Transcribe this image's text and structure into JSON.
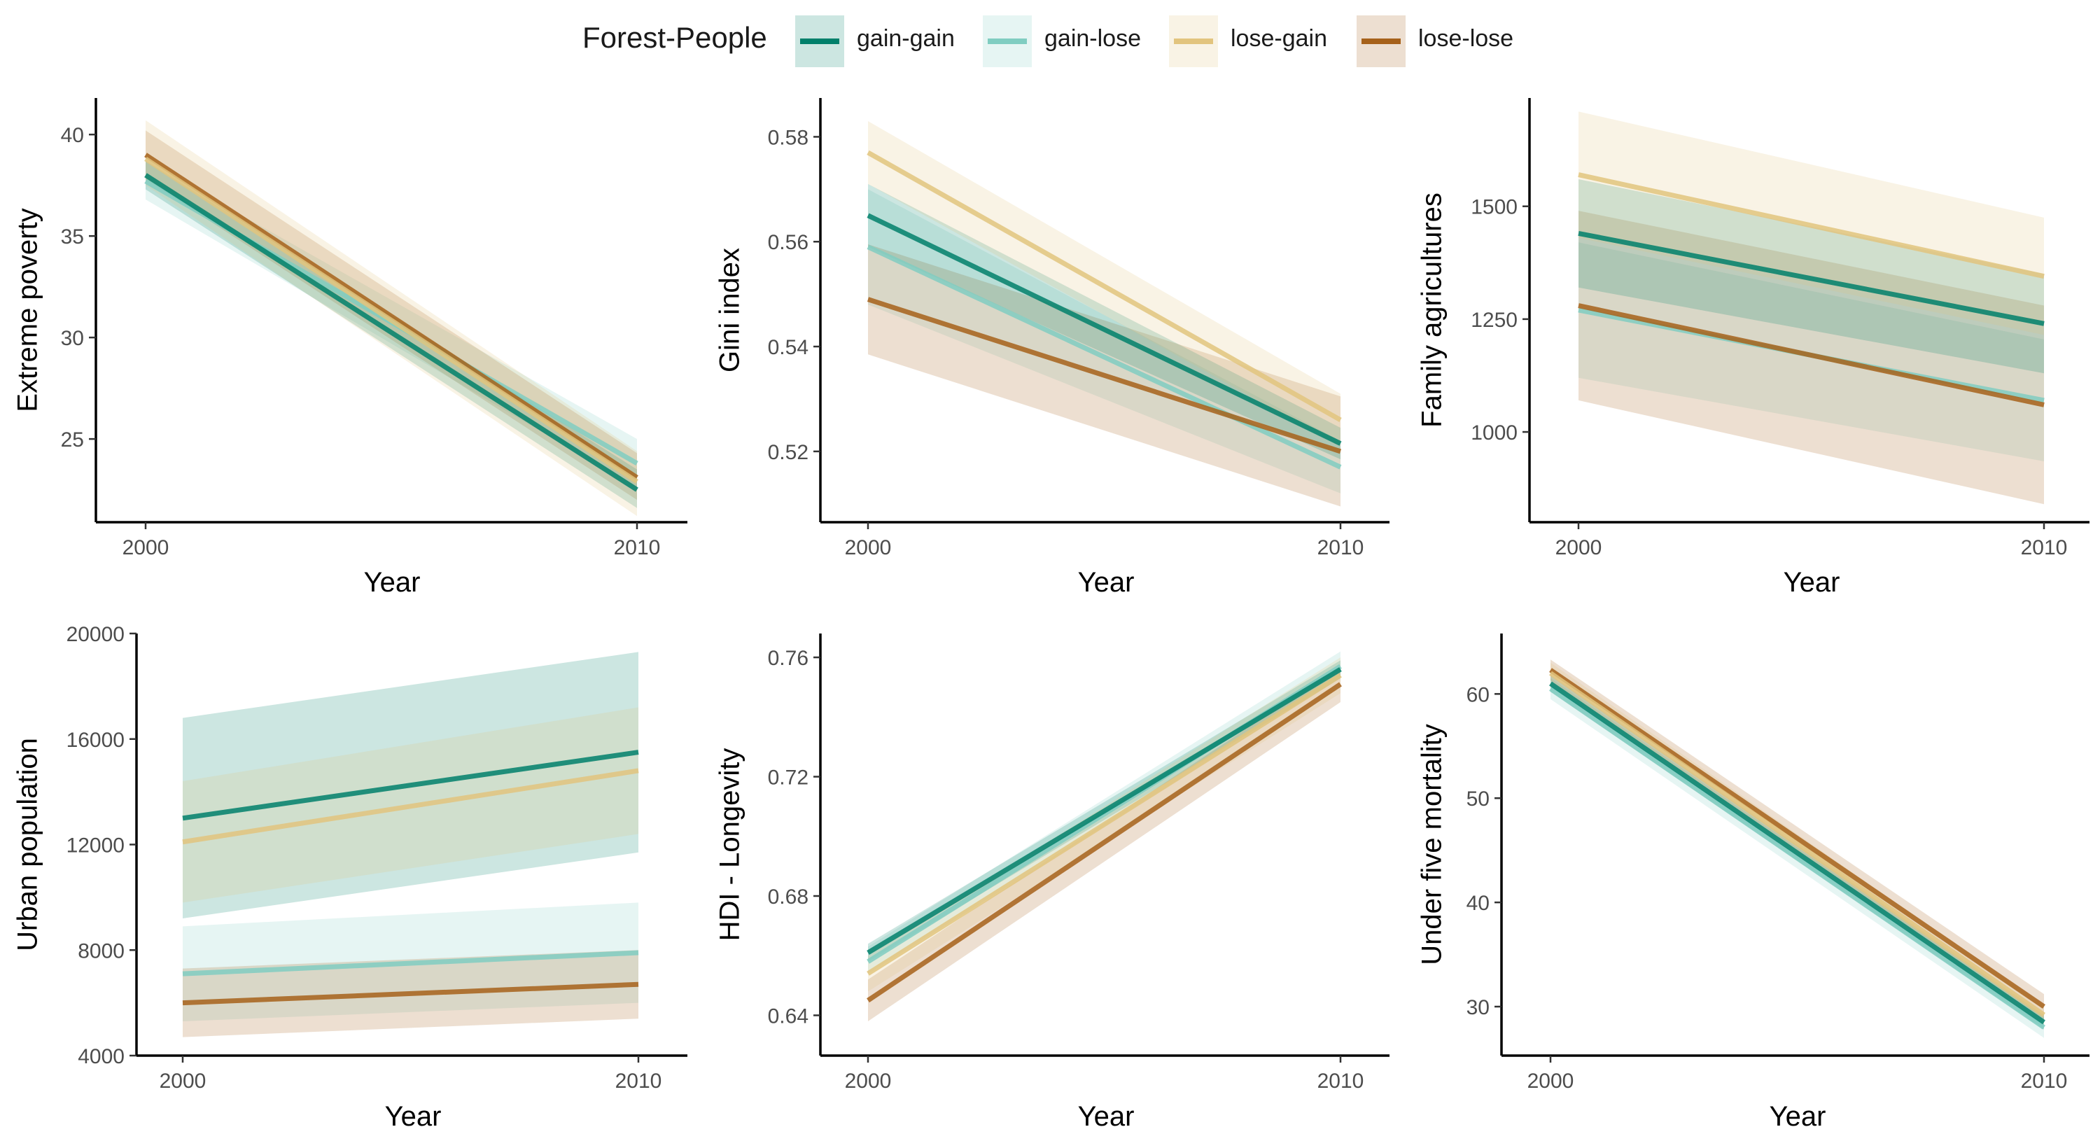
{
  "legend": {
    "title": "Forest-People",
    "items": [
      {
        "label": "gain-gain",
        "color": "#01806B"
      },
      {
        "label": "gain-lose",
        "color": "#80CDC1"
      },
      {
        "label": "lose-gain",
        "color": "#E2C47E"
      },
      {
        "label": "lose-lose",
        "color": "#A6611A"
      }
    ]
  },
  "chart_data": [
    {
      "type": "line",
      "ylabel": "Extreme poverty",
      "xlabel": "Year",
      "x": [
        2000,
        2010
      ],
      "xticks": [
        2000,
        2010
      ],
      "yticks": [
        25,
        30,
        35,
        40
      ],
      "ylim": [
        20.9,
        41.8
      ],
      "series": [
        {
          "name": "gain-gain",
          "values": [
            38.0,
            22.5
          ],
          "ci_lower": [
            37.3,
            21.6
          ],
          "ci_upper": [
            38.7,
            23.5
          ]
        },
        {
          "name": "gain-lose",
          "values": [
            37.7,
            23.8
          ],
          "ci_lower": [
            36.8,
            22.6
          ],
          "ci_upper": [
            38.7,
            25.0
          ]
        },
        {
          "name": "lose-gain",
          "values": [
            38.8,
            22.9
          ],
          "ci_lower": [
            37.5,
            21.2
          ],
          "ci_upper": [
            40.7,
            24.4
          ]
        },
        {
          "name": "lose-lose",
          "values": [
            39.0,
            23.1
          ],
          "ci_lower": [
            37.8,
            22.0
          ],
          "ci_upper": [
            40.2,
            24.3
          ]
        }
      ]
    },
    {
      "type": "line",
      "ylabel": "Gini index",
      "xlabel": "Year",
      "x": [
        2000,
        2010
      ],
      "xticks": [
        2000,
        2010
      ],
      "yticks": [
        0.52,
        0.54,
        0.56,
        0.58
      ],
      "ylim": [
        0.5065,
        0.5874
      ],
      "series": [
        {
          "name": "gain-gain",
          "values": [
            0.565,
            0.5215
          ],
          "ci_lower": [
            0.559,
            0.5185
          ],
          "ci_upper": [
            0.571,
            0.5245
          ]
        },
        {
          "name": "gain-lose",
          "values": [
            0.559,
            0.517
          ],
          "ci_lower": [
            0.548,
            0.512
          ],
          "ci_upper": [
            0.57,
            0.522
          ]
        },
        {
          "name": "lose-gain",
          "values": [
            0.577,
            0.526
          ],
          "ci_lower": [
            0.571,
            0.521
          ],
          "ci_upper": [
            0.583,
            0.531
          ]
        },
        {
          "name": "lose-lose",
          "values": [
            0.549,
            0.52
          ],
          "ci_lower": [
            0.5385,
            0.5095
          ],
          "ci_upper": [
            0.5595,
            0.5305
          ]
        }
      ]
    },
    {
      "type": "line",
      "ylabel": "Family agricultures",
      "xlabel": "Year",
      "x": [
        2000,
        2010
      ],
      "xticks": [
        2000,
        2010
      ],
      "yticks": [
        1000,
        1250,
        1500
      ],
      "ylim": [
        800,
        1740
      ],
      "series": [
        {
          "name": "gain-gain",
          "values": [
            1440,
            1240
          ],
          "ci_lower": [
            1320,
            1130
          ],
          "ci_upper": [
            1560,
            1350
          ]
        },
        {
          "name": "gain-lose",
          "values": [
            1270,
            1070
          ],
          "ci_lower": [
            1120,
            935
          ],
          "ci_upper": [
            1420,
            1205
          ]
        },
        {
          "name": "lose-gain",
          "values": [
            1570,
            1345
          ],
          "ci_lower": [
            1430,
            1215
          ],
          "ci_upper": [
            1710,
            1475
          ]
        },
        {
          "name": "lose-lose",
          "values": [
            1280,
            1060
          ],
          "ci_lower": [
            1070,
            840
          ],
          "ci_upper": [
            1490,
            1280
          ]
        }
      ]
    },
    {
      "type": "line",
      "ylabel": "Urban population",
      "xlabel": "Year",
      "x": [
        2000,
        2010
      ],
      "xticks": [
        2000,
        2010
      ],
      "yticks": [
        4000,
        8000,
        12000,
        16000,
        20000
      ],
      "ylim": [
        4000,
        20000
      ],
      "series": [
        {
          "name": "gain-gain",
          "values": [
            13000,
            15500
          ],
          "ci_lower": [
            9200,
            11700
          ],
          "ci_upper": [
            16800,
            19300
          ]
        },
        {
          "name": "gain-lose",
          "values": [
            7100,
            7900
          ],
          "ci_lower": [
            5300,
            6000
          ],
          "ci_upper": [
            8900,
            9800
          ]
        },
        {
          "name": "lose-gain",
          "values": [
            12100,
            14800
          ],
          "ci_lower": [
            9800,
            12400
          ],
          "ci_upper": [
            14400,
            17200
          ]
        },
        {
          "name": "lose-lose",
          "values": [
            6000,
            6700
          ],
          "ci_lower": [
            4700,
            5400
          ],
          "ci_upper": [
            7300,
            8000
          ]
        }
      ]
    },
    {
      "type": "line",
      "ylabel": "HDI - Longevity",
      "xlabel": "Year",
      "x": [
        2000,
        2010
      ],
      "xticks": [
        2000,
        2010
      ],
      "yticks": [
        0.64,
        0.68,
        0.72,
        0.76
      ],
      "ylim": [
        0.6265,
        0.768
      ],
      "series": [
        {
          "name": "gain-gain",
          "values": [
            0.661,
            0.756
          ],
          "ci_lower": [
            0.658,
            0.753
          ],
          "ci_upper": [
            0.664,
            0.759
          ]
        },
        {
          "name": "gain-lose",
          "values": [
            0.658,
            0.757
          ],
          "ci_lower": [
            0.654,
            0.753
          ],
          "ci_upper": [
            0.663,
            0.762
          ]
        },
        {
          "name": "lose-gain",
          "values": [
            0.654,
            0.754
          ],
          "ci_lower": [
            0.648,
            0.748
          ],
          "ci_upper": [
            0.66,
            0.76
          ]
        },
        {
          "name": "lose-lose",
          "values": [
            0.645,
            0.751
          ],
          "ci_lower": [
            0.638,
            0.745
          ],
          "ci_upper": [
            0.652,
            0.757
          ]
        }
      ]
    },
    {
      "type": "line",
      "ylabel": "Under five mortality",
      "xlabel": "Year",
      "x": [
        2000,
        2010
      ],
      "xticks": [
        2000,
        2010
      ],
      "yticks": [
        30,
        40,
        50,
        60
      ],
      "ylim": [
        25.3,
        65.8
      ],
      "series": [
        {
          "name": "gain-gain",
          "values": [
            61.0,
            28.5
          ],
          "ci_lower": [
            60.2,
            27.8
          ],
          "ci_upper": [
            61.8,
            29.2
          ]
        },
        {
          "name": "gain-lose",
          "values": [
            60.5,
            28.0
          ],
          "ci_lower": [
            59.5,
            27.0
          ],
          "ci_upper": [
            61.5,
            29.0
          ]
        },
        {
          "name": "lose-gain",
          "values": [
            62.0,
            29.2
          ],
          "ci_lower": [
            61.0,
            28.3
          ],
          "ci_upper": [
            63.0,
            30.1
          ]
        },
        {
          "name": "lose-lose",
          "values": [
            62.3,
            30.0
          ],
          "ci_lower": [
            61.3,
            28.8
          ],
          "ci_upper": [
            63.3,
            31.2
          ]
        }
      ]
    }
  ]
}
